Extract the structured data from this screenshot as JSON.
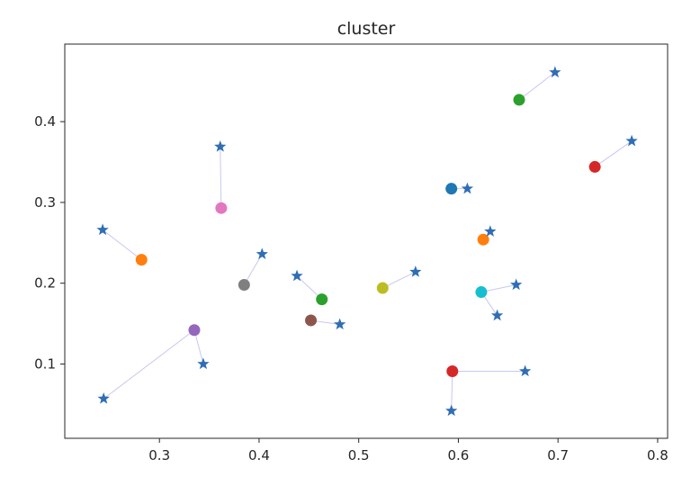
{
  "chart_data": {
    "type": "scatter",
    "title": "cluster",
    "xlabel": "",
    "ylabel": "",
    "xlim": [
      0.205,
      0.81
    ],
    "ylim": [
      0.008,
      0.496
    ],
    "x_ticks": [
      0.3,
      0.4,
      0.5,
      0.6,
      0.7,
      0.8
    ],
    "x_tick_labels": [
      "0.3",
      "0.4",
      "0.5",
      "0.6",
      "0.7",
      "0.8"
    ],
    "y_ticks": [
      0.1,
      0.2,
      0.3,
      0.4
    ],
    "y_tick_labels": [
      "0.1",
      "0.2",
      "0.3",
      "0.4"
    ],
    "grid": false,
    "legend": "none",
    "star_color": "#2f6eb4",
    "line_color": "#c8c8f0",
    "centers": [
      {
        "x": 0.593,
        "y": 0.317,
        "color": "#1f77b4"
      },
      {
        "x": 0.282,
        "y": 0.229,
        "color": "#ff7f0e"
      },
      {
        "x": 0.625,
        "y": 0.254,
        "color": "#ff7f0e"
      },
      {
        "x": 0.661,
        "y": 0.427,
        "color": "#2ca02c"
      },
      {
        "x": 0.463,
        "y": 0.18,
        "color": "#2ca02c"
      },
      {
        "x": 0.737,
        "y": 0.344,
        "color": "#d62728"
      },
      {
        "x": 0.594,
        "y": 0.091,
        "color": "#d62728"
      },
      {
        "x": 0.335,
        "y": 0.142,
        "color": "#9467bd"
      },
      {
        "x": 0.452,
        "y": 0.154,
        "color": "#8c564b"
      },
      {
        "x": 0.362,
        "y": 0.293,
        "color": "#e377c2"
      },
      {
        "x": 0.385,
        "y": 0.198,
        "color": "#7f7f7f"
      },
      {
        "x": 0.524,
        "y": 0.194,
        "color": "#bcbd22"
      },
      {
        "x": 0.623,
        "y": 0.189,
        "color": "#17becf"
      }
    ],
    "points": [
      {
        "x": 0.609,
        "y": 0.317,
        "center": 0
      },
      {
        "x": 0.243,
        "y": 0.266,
        "center": 1
      },
      {
        "x": 0.632,
        "y": 0.264,
        "center": 2
      },
      {
        "x": 0.697,
        "y": 0.461,
        "center": 3
      },
      {
        "x": 0.438,
        "y": 0.209,
        "center": 4
      },
      {
        "x": 0.774,
        "y": 0.376,
        "center": 5
      },
      {
        "x": 0.667,
        "y": 0.091,
        "center": 6
      },
      {
        "x": 0.593,
        "y": 0.042,
        "center": 6
      },
      {
        "x": 0.244,
        "y": 0.057,
        "center": 7
      },
      {
        "x": 0.344,
        "y": 0.1,
        "center": 7
      },
      {
        "x": 0.481,
        "y": 0.149,
        "center": 8
      },
      {
        "x": 0.361,
        "y": 0.369,
        "center": 9
      },
      {
        "x": 0.403,
        "y": 0.236,
        "center": 10
      },
      {
        "x": 0.557,
        "y": 0.214,
        "center": 11
      },
      {
        "x": 0.658,
        "y": 0.198,
        "center": 12
      },
      {
        "x": 0.639,
        "y": 0.16,
        "center": 12
      }
    ]
  }
}
